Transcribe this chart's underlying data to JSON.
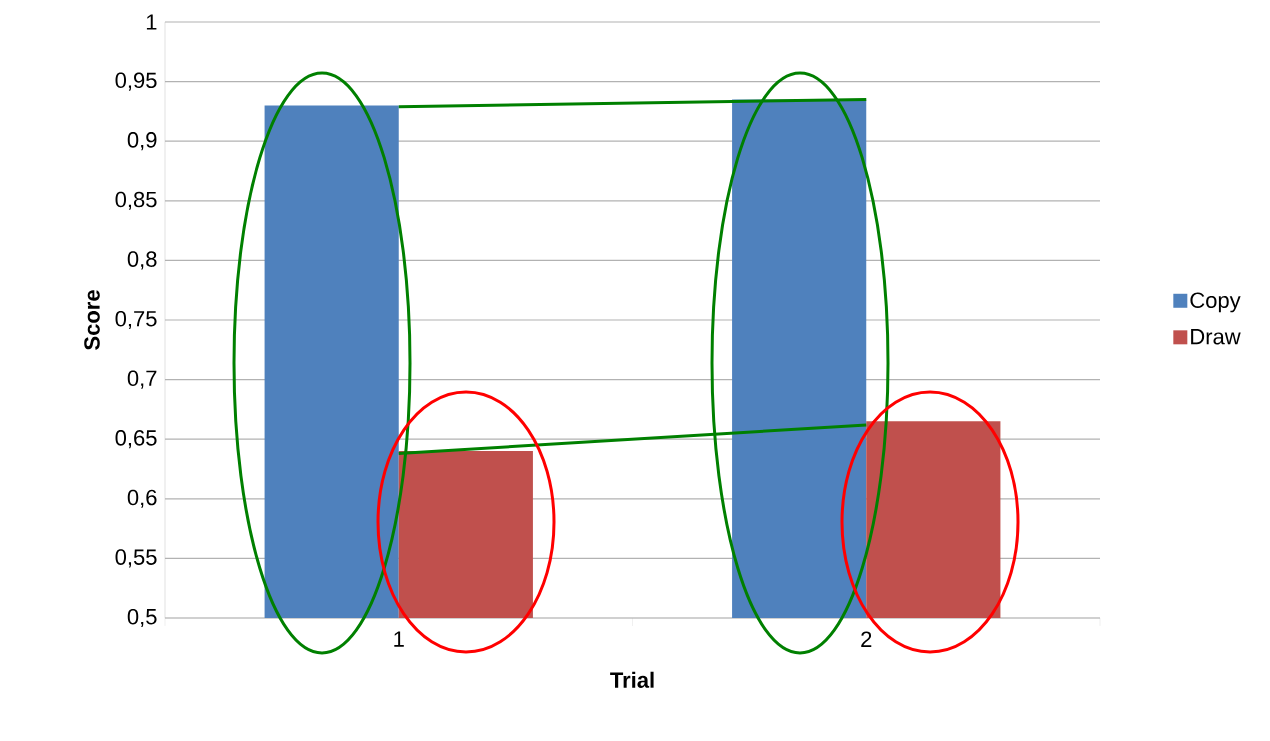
{
  "chart_data": {
    "type": "bar",
    "xlabel": "Trial",
    "ylabel": "Score",
    "categories": [
      "1",
      "2"
    ],
    "series": [
      {
        "name": "Copy",
        "color": "#4f81bd",
        "values": [
          0.93,
          0.935
        ]
      },
      {
        "name": "Draw",
        "color": "#c0504d",
        "values": [
          0.64,
          0.665
        ]
      },
      {
        "type": "line",
        "color": "#008000",
        "x": [
          "1",
          "2"
        ],
        "values": [
          0.929,
          0.935
        ]
      },
      {
        "type": "line",
        "color": "#008000",
        "x": [
          "1",
          "2"
        ],
        "values": [
          0.638,
          0.662
        ]
      }
    ],
    "ylim": [
      0.5,
      1
    ],
    "yticks": [
      {
        "value": 0.5,
        "label": "0,5"
      },
      {
        "value": 0.55,
        "label": "0,55"
      },
      {
        "value": 0.6,
        "label": "0,6"
      },
      {
        "value": 0.65,
        "label": "0,65"
      },
      {
        "value": 0.7,
        "label": "0,7"
      },
      {
        "value": 0.75,
        "label": "0,75"
      },
      {
        "value": 0.8,
        "label": "0,8"
      },
      {
        "value": 0.85,
        "label": "0,85"
      },
      {
        "value": 0.9,
        "label": "0,9"
      },
      {
        "value": 0.95,
        "label": "0,95"
      },
      1
    ],
    "grid": "y",
    "legend": "right"
  }
}
